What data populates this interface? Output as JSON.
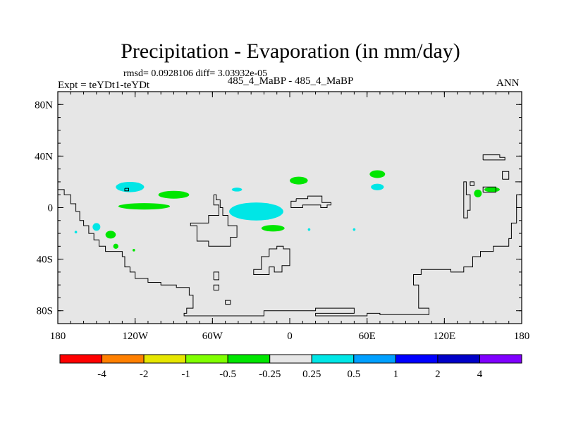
{
  "header": {
    "title": "Precipitation - Evaporation (in mm/day)",
    "stats": "rmsd= 0.0928106 diff= 3.03932e-05",
    "expt": "Expt = teYDt1-teYDt",
    "case": "485_4_MaBP - 485_4_MaBP",
    "season": "ANN"
  },
  "chart_data": {
    "type": "map",
    "title": "Precipitation - Evaporation (in mm/day)",
    "projection": "cylindrical-equidistant",
    "xlim": [
      -180,
      180
    ],
    "ylim": [
      -90,
      90
    ],
    "x_ticks": [
      {
        "value": -180,
        "label": "180"
      },
      {
        "value": -120,
        "label": "120W"
      },
      {
        "value": -60,
        "label": "60W"
      },
      {
        "value": 0,
        "label": "0"
      },
      {
        "value": 60,
        "label": "60E"
      },
      {
        "value": 120,
        "label": "120E"
      },
      {
        "value": 180,
        "label": "180"
      }
    ],
    "y_ticks": [
      {
        "value": 80,
        "label": "80N"
      },
      {
        "value": 40,
        "label": "40N"
      },
      {
        "value": 0,
        "label": "0"
      },
      {
        "value": -40,
        "label": "40S"
      },
      {
        "value": -80,
        "label": "80S"
      }
    ],
    "colorbar": {
      "colors": [
        "#ff0000",
        "#ff8000",
        "#e6e600",
        "#80ff00",
        "#00e600",
        "#e6e6e6",
        "#00e6e6",
        "#00a0ff",
        "#0000ff",
        "#0000c8",
        "#8000ff"
      ],
      "labels": [
        "-4",
        "-2",
        "-1",
        "-0.5",
        "-0.25",
        "0.25",
        "0.5",
        "1",
        "2",
        "4"
      ]
    },
    "background_color": "#e6e6e6",
    "patches": [
      {
        "lon": -124,
        "lat": 16,
        "dlon": 11,
        "dlat": 4,
        "color": "#00e6e6"
      },
      {
        "lon": -41,
        "lat": 14,
        "dlon": 4,
        "dlat": 1.5,
        "color": "#00e6e6"
      },
      {
        "lon": -26,
        "lat": -3,
        "dlon": 21,
        "dlat": 7,
        "color": "#00e6e6"
      },
      {
        "lon": 68,
        "lat": 16,
        "dlon": 5,
        "dlat": 2.5,
        "color": "#00e6e6"
      },
      {
        "lon": -150,
        "lat": -15,
        "dlon": 3,
        "dlat": 3,
        "color": "#00e6e6"
      },
      {
        "lon": 15,
        "lat": -17,
        "dlon": 1,
        "dlat": 1,
        "color": "#00e6e6"
      },
      {
        "lon": 50,
        "lat": -17,
        "dlon": 1,
        "dlat": 1,
        "color": "#00e6e6"
      },
      {
        "lon": -166,
        "lat": -19,
        "dlon": 1,
        "dlat": 1,
        "color": "#00e6e6"
      },
      {
        "lon": -90,
        "lat": 10,
        "dlon": 12,
        "dlat": 3,
        "color": "#00e600"
      },
      {
        "lon": -113,
        "lat": 1,
        "dlon": 20,
        "dlat": 2.5,
        "color": "#00e600"
      },
      {
        "lon": 7,
        "lat": 21,
        "dlon": 7,
        "dlat": 3,
        "color": "#00e600"
      },
      {
        "lon": 68,
        "lat": 26,
        "dlon": 6,
        "dlat": 3,
        "color": "#00e600"
      },
      {
        "lon": -13,
        "lat": -16,
        "dlon": 9,
        "dlat": 2.5,
        "color": "#00e600"
      },
      {
        "lon": -139,
        "lat": -21,
        "dlon": 4,
        "dlat": 3,
        "color": "#00e600"
      },
      {
        "lon": -135,
        "lat": -30,
        "dlon": 2,
        "dlat": 2,
        "color": "#00e600"
      },
      {
        "lon": 157,
        "lat": 14,
        "dlon": 6,
        "dlat": 2,
        "color": "#00e600"
      },
      {
        "lon": 146,
        "lat": 11,
        "dlon": 3,
        "dlat": 3,
        "color": "#00e600"
      },
      {
        "lon": -121,
        "lat": -33,
        "dlon": 1,
        "dlat": 1,
        "color": "#00e600"
      }
    ],
    "coastlines": [
      [
        [
          -180,
          14
        ],
        [
          -175,
          14
        ],
        [
          -175,
          10
        ],
        [
          -170,
          10
        ],
        [
          -170,
          3
        ],
        [
          -166,
          3
        ],
        [
          -166,
          -3
        ],
        [
          -163,
          -3
        ],
        [
          -163,
          -10
        ],
        [
          -160,
          -10
        ],
        [
          -160,
          -14
        ],
        [
          -156,
          -14
        ],
        [
          -156,
          -20
        ],
        [
          -152,
          -20
        ],
        [
          -152,
          -25
        ],
        [
          -148,
          -25
        ],
        [
          -148,
          -30
        ],
        [
          -143,
          -30
        ],
        [
          -143,
          -34
        ],
        [
          -130,
          -34
        ],
        [
          -130,
          -38
        ],
        [
          -128,
          -38
        ],
        [
          -128,
          -46
        ],
        [
          -124,
          -46
        ],
        [
          -124,
          -50
        ],
        [
          -120,
          -50
        ],
        [
          -120,
          -55
        ],
        [
          -110,
          -55
        ],
        [
          -110,
          -58
        ],
        [
          -100,
          -58
        ],
        [
          -100,
          -60
        ],
        [
          -88,
          -60
        ],
        [
          -88,
          -62
        ],
        [
          -78,
          -62
        ],
        [
          -78,
          -68
        ],
        [
          -75,
          -68
        ],
        [
          -75,
          -78
        ],
        [
          -80,
          -78
        ],
        [
          -80,
          -82
        ],
        [
          -82,
          -82
        ],
        [
          -82,
          -84
        ],
        [
          -20,
          -84
        ],
        [
          -20,
          -80
        ],
        [
          20,
          -80
        ],
        [
          20,
          -78
        ],
        [
          50,
          -78
        ],
        [
          50,
          -82
        ],
        [
          20,
          -82
        ],
        [
          20,
          -84
        ],
        [
          60,
          -84
        ],
        [
          60,
          -82
        ],
        [
          70,
          -82
        ],
        [
          70,
          -83
        ],
        [
          108,
          -83
        ],
        [
          108,
          -78
        ],
        [
          100,
          -78
        ],
        [
          100,
          -60
        ],
        [
          96,
          -60
        ],
        [
          96,
          -52
        ],
        [
          102,
          -52
        ],
        [
          102,
          -48
        ],
        [
          125,
          -48
        ],
        [
          125,
          -50
        ],
        [
          135,
          -50
        ],
        [
          135,
          -46
        ],
        [
          142,
          -46
        ],
        [
          142,
          -38
        ],
        [
          148,
          -38
        ],
        [
          148,
          -34
        ],
        [
          158,
          -34
        ],
        [
          158,
          -30
        ],
        [
          170,
          -30
        ],
        [
          170,
          -24
        ],
        [
          172,
          -24
        ],
        [
          172,
          -12
        ],
        [
          176,
          -12
        ],
        [
          176,
          10
        ],
        [
          180,
          10
        ]
      ],
      [
        [
          -128,
          15
        ],
        [
          -128,
          13
        ],
        [
          -125,
          13
        ],
        [
          -125,
          15
        ],
        [
          -128,
          15
        ]
      ],
      [
        [
          -59,
          10
        ],
        [
          -59,
          2
        ],
        [
          -55,
          2
        ],
        [
          -55,
          -6
        ],
        [
          -63,
          -6
        ],
        [
          -63,
          -12
        ],
        [
          -77,
          -12
        ],
        [
          -77,
          -14
        ],
        [
          -72,
          -14
        ],
        [
          -72,
          -26
        ],
        [
          -63,
          -26
        ],
        [
          -63,
          -30
        ],
        [
          -46,
          -30
        ],
        [
          -46,
          -23
        ],
        [
          -41,
          -23
        ],
        [
          -41,
          -14
        ],
        [
          -48,
          -14
        ],
        [
          -48,
          -6
        ],
        [
          -52,
          -6
        ],
        [
          -52,
          0
        ],
        [
          -54,
          0
        ],
        [
          -54,
          6
        ],
        [
          -57,
          6
        ],
        [
          -57,
          10
        ],
        [
          -59,
          10
        ]
      ],
      [
        [
          5,
          7
        ],
        [
          5,
          5
        ],
        [
          1,
          5
        ],
        [
          1,
          0
        ],
        [
          10,
          0
        ],
        [
          10,
          2
        ],
        [
          24,
          2
        ],
        [
          24,
          0
        ],
        [
          29,
          0
        ],
        [
          29,
          2
        ],
        [
          32,
          2
        ],
        [
          32,
          4
        ],
        [
          25,
          4
        ],
        [
          25,
          9
        ],
        [
          14,
          9
        ],
        [
          14,
          7
        ],
        [
          5,
          7
        ]
      ],
      [
        [
          -16,
          -38
        ],
        [
          -16,
          -32
        ],
        [
          -10,
          -32
        ],
        [
          -10,
          -30
        ],
        [
          -5,
          -30
        ],
        [
          -5,
          -32
        ],
        [
          0,
          -32
        ],
        [
          0,
          -45
        ],
        [
          -6,
          -45
        ],
        [
          -6,
          -50
        ],
        [
          -12,
          -50
        ],
        [
          -12,
          -46
        ],
        [
          -16,
          -46
        ],
        [
          -16,
          -52
        ],
        [
          -28,
          -52
        ],
        [
          -28,
          -48
        ],
        [
          -22,
          -48
        ],
        [
          -22,
          -38
        ],
        [
          -16,
          -38
        ]
      ],
      [
        [
          -59,
          -56
        ],
        [
          -55,
          -56
        ],
        [
          -55,
          -50
        ],
        [
          -59,
          -50
        ],
        [
          -59,
          -56
        ]
      ],
      [
        [
          -55,
          -64
        ],
        [
          -59,
          -64
        ],
        [
          -59,
          -60
        ],
        [
          -55,
          -60
        ],
        [
          -55,
          -64
        ]
      ],
      [
        [
          -50,
          -75
        ],
        [
          -50,
          -72
        ],
        [
          -46,
          -72
        ],
        [
          -46,
          -75
        ],
        [
          -50,
          -75
        ]
      ],
      [
        [
          135,
          1
        ],
        [
          135,
          20
        ],
        [
          137,
          20
        ],
        [
          137,
          10
        ],
        [
          140,
          10
        ],
        [
          140,
          -2
        ],
        [
          138,
          -2
        ],
        [
          138,
          -8
        ],
        [
          135,
          -8
        ],
        [
          135,
          1
        ]
      ],
      [
        [
          150,
          12
        ],
        [
          150,
          16
        ],
        [
          160,
          16
        ],
        [
          160,
          12
        ],
        [
          150,
          12
        ]
      ],
      [
        [
          140,
          17
        ],
        [
          140,
          20
        ],
        [
          143,
          20
        ],
        [
          143,
          17
        ],
        [
          140,
          17
        ]
      ],
      [
        [
          150,
          37
        ],
        [
          150,
          41
        ],
        [
          163,
          41
        ],
        [
          163,
          39
        ],
        [
          167,
          39
        ],
        [
          167,
          37
        ],
        [
          150,
          37
        ]
      ],
      [
        [
          165,
          22
        ],
        [
          170,
          22
        ],
        [
          170,
          28
        ],
        [
          165,
          28
        ],
        [
          165,
          22
        ]
      ],
      [
        [
          175,
          20
        ],
        [
          180,
          20
        ]
      ]
    ]
  }
}
